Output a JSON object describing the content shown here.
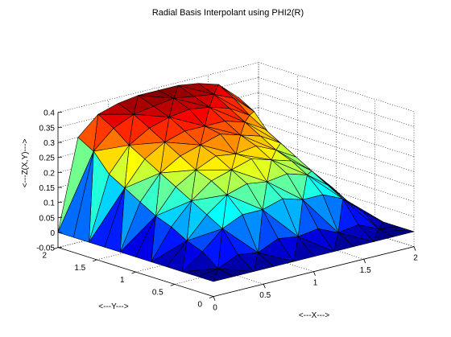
{
  "chart_data": {
    "type": "surface",
    "title": "Radial Basis Interpolant using PHI2(R)",
    "xlabel": "<---X--->",
    "ylabel": "<---Y--->",
    "zlabel": "<---Z(X,Y)--->",
    "xlim": [
      0,
      2
    ],
    "ylim": [
      0,
      2
    ],
    "zlim": [
      -0.05,
      0.4
    ],
    "x_ticks": [
      "0",
      "0.5",
      "1",
      "1.5",
      "2"
    ],
    "y_ticks": [
      "0",
      "0.5",
      "1",
      "1.5",
      "2"
    ],
    "z_ticks": [
      "-0.05",
      "0",
      "0.05",
      "0.1",
      "0.15",
      "0.2",
      "0.25",
      "0.3",
      "0.35",
      "0.4"
    ],
    "grid": true,
    "colormap": "jet",
    "x": [
      0,
      0.2,
      0.4,
      0.6,
      0.8,
      1.0,
      1.2,
      1.4,
      1.6,
      1.8,
      2.0
    ],
    "y": [
      0,
      0.2,
      0.4,
      0.6,
      0.8,
      1.0,
      1.2,
      1.4,
      1.6,
      1.8,
      2.0
    ],
    "z": [
      [
        0.0,
        0.0,
        0.0,
        0.0,
        0.0,
        0.0,
        0.0,
        0.0,
        0.0,
        0.0,
        0.0
      ],
      [
        0.0,
        0.01,
        0.04,
        0.03,
        0.06,
        0.05,
        0.06,
        0.03,
        0.04,
        0.01,
        0.0
      ],
      [
        0.0,
        0.05,
        0.11,
        0.14,
        0.14,
        0.16,
        0.14,
        0.14,
        0.11,
        0.05,
        0.0
      ],
      [
        0.0,
        0.07,
        0.14,
        0.19,
        0.21,
        0.2,
        0.21,
        0.19,
        0.14,
        0.07,
        0.0
      ],
      [
        0.0,
        0.1,
        0.17,
        0.22,
        0.24,
        0.26,
        0.24,
        0.22,
        0.17,
        0.1,
        0.0
      ],
      [
        0.0,
        0.12,
        0.2,
        0.24,
        0.27,
        0.26,
        0.27,
        0.24,
        0.2,
        0.12,
        0.0
      ],
      [
        0.0,
        0.15,
        0.23,
        0.27,
        0.29,
        0.31,
        0.29,
        0.27,
        0.23,
        0.15,
        0.0
      ],
      [
        0.0,
        0.18,
        0.26,
        0.3,
        0.32,
        0.32,
        0.32,
        0.3,
        0.26,
        0.18,
        0.0
      ],
      [
        0.0,
        0.21,
        0.29,
        0.33,
        0.35,
        0.36,
        0.35,
        0.33,
        0.29,
        0.21,
        0.0
      ],
      [
        0.0,
        0.27,
        0.33,
        0.36,
        0.37,
        0.38,
        0.37,
        0.36,
        0.33,
        0.27,
        0.0
      ],
      [
        0.0,
        0.3,
        0.36,
        0.38,
        0.39,
        0.39,
        0.39,
        0.38,
        0.36,
        0.3,
        0.0
      ]
    ]
  }
}
